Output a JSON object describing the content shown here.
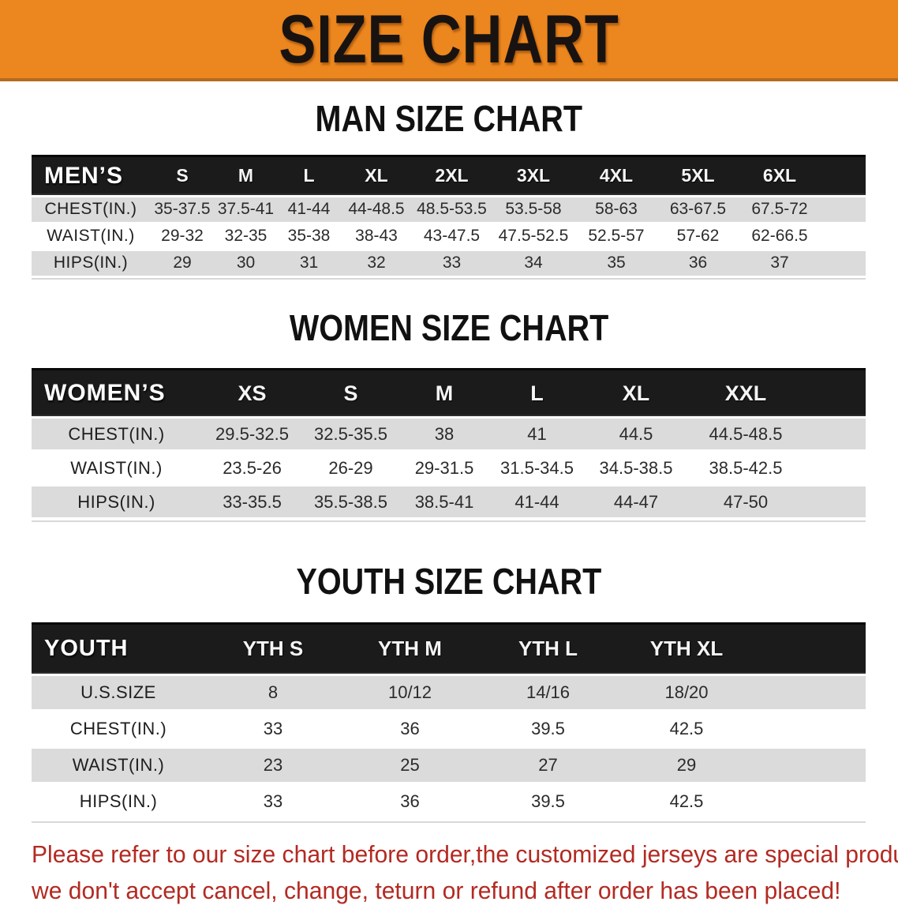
{
  "banner": {
    "title": "SIZE CHART"
  },
  "colors": {
    "banner_bg": "#EC861E",
    "banner_edge": "#B56A20",
    "header_band": "#1C1B1B",
    "row_gray": "#DBDBDB",
    "row_white": "#FFFFFF",
    "heading_text": "#111111",
    "value_text": "#2B2B2B",
    "disclaimer_red": "#B32A22"
  },
  "sections": [
    {
      "id": "mens",
      "heading": "MAN SIZE CHART",
      "table": {
        "corner_label": "MEN’S",
        "columns": [
          "S",
          "M",
          "L",
          "XL",
          "2XL",
          "3XL",
          "4XL",
          "5XL",
          "6XL"
        ],
        "rows": [
          {
            "label": "CHEST(IN.)",
            "values": [
              "35-37.5",
              "37.5-41",
              "41-44",
              "44-48.5",
              "48.5-53.5",
              "53.5-58",
              "58-63",
              "63-67.5",
              "67.5-72"
            ]
          },
          {
            "label": "WAIST(IN.)",
            "values": [
              "29-32",
              "32-35",
              "35-38",
              "38-43",
              "43-47.5",
              "47.5-52.5",
              "52.5-57",
              "57-62",
              "62-66.5"
            ]
          },
          {
            "label": "HIPS(IN.)",
            "values": [
              "29",
              "30",
              "31",
              "32",
              "33",
              "34",
              "35",
              "36",
              "37"
            ]
          }
        ]
      }
    },
    {
      "id": "womens",
      "heading": "WOMEN SIZE CHART",
      "table": {
        "corner_label": "WOMEN’S",
        "columns": [
          "XS",
          "S",
          "M",
          "L",
          "XL",
          "XXL"
        ],
        "rows": [
          {
            "label": "CHEST(IN.)",
            "values": [
              "29.5-32.5",
              "32.5-35.5",
              "38",
              "41",
              "44.5",
              "44.5-48.5"
            ]
          },
          {
            "label": "WAIST(IN.)",
            "values": [
              "23.5-26",
              "26-29",
              "29-31.5",
              "31.5-34.5",
              "34.5-38.5",
              "38.5-42.5"
            ]
          },
          {
            "label": "HIPS(IN.)",
            "values": [
              "33-35.5",
              "35.5-38.5",
              "38.5-41",
              "41-44",
              "44-47",
              "47-50"
            ]
          }
        ]
      }
    },
    {
      "id": "youth",
      "heading": "YOUTH SIZE CHART",
      "table": {
        "corner_label": "YOUTH",
        "columns": [
          "YTH S",
          "YTH M",
          "YTH L",
          "YTH XL"
        ],
        "rows": [
          {
            "label": "U.S.SIZE",
            "values": [
              "8",
              "10/12",
              "14/16",
              "18/20"
            ]
          },
          {
            "label": "CHEST(IN.)",
            "values": [
              "33",
              "36",
              "39.5",
              "42.5"
            ]
          },
          {
            "label": "WAIST(IN.)",
            "values": [
              "23",
              "25",
              "27",
              "29"
            ]
          },
          {
            "label": "HIPS(IN.)",
            "values": [
              "33",
              "36",
              "39.5",
              "42.5"
            ]
          }
        ]
      }
    }
  ],
  "disclaimer": {
    "line1": "Please refer to our size chart before order,the customized jerseys are special products,",
    "line2": "we don't accept cancel, change, teturn or refund after order has been placed!"
  }
}
